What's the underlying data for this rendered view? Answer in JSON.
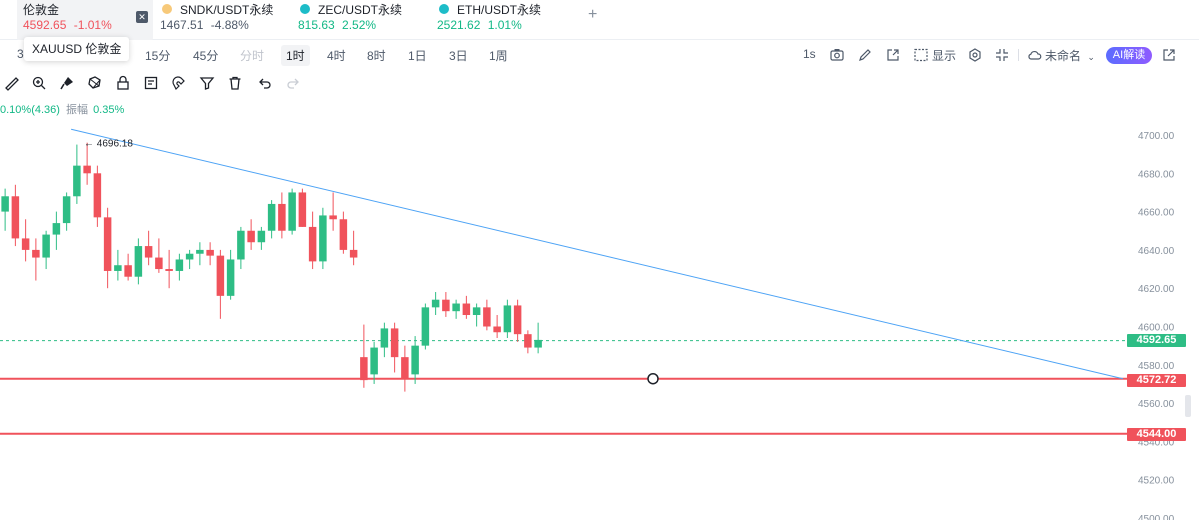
{
  "tickers": [
    {
      "name": "伦敦金",
      "price": "4592.65",
      "change": "-1.01%",
      "active": true
    },
    {
      "name": "SNDK/USDT永续",
      "price": "1467.51",
      "change": "-4.88%"
    },
    {
      "name": "ZEC/USDT永续",
      "price": "815.63",
      "change": "2.52%"
    },
    {
      "name": "ETH/USDT永续",
      "price": "2521.62",
      "change": "1.01%"
    }
  ],
  "tooltip": "XAUUSD 伦敦金",
  "intervals": {
    "first": "3",
    "items": [
      "15分",
      "45分",
      "分时",
      "1时",
      "4时",
      "8时",
      "1日",
      "3日",
      "1周"
    ],
    "active": "1时"
  },
  "toolbar_right": {
    "seconds": "1s",
    "display": "显示",
    "unnamed": "未命名",
    "ai": "AI解读"
  },
  "info_line": {
    "change": "0.10%(4.36)",
    "amplitude_label": "振幅",
    "amplitude": "0.35%"
  },
  "colors": {
    "up": "#2ebd85",
    "down": "#f0525b",
    "trend": "#4da3f5",
    "level": "#f0525b",
    "current": "#2ebd85"
  },
  "chart_data": {
    "type": "candlestick",
    "y_ticks": [
      4700,
      4680,
      4660,
      4640,
      4620,
      4600,
      4580,
      4560,
      4540,
      4520,
      4500
    ],
    "ylim": [
      4498,
      4705
    ],
    "high_marker": "4696.18",
    "current_price": "4592.65",
    "levels": [
      "4572.72",
      "4544.00"
    ],
    "trendline": {
      "from": {
        "candle": 0,
        "price": 4703
      },
      "to": {
        "candle": 59,
        "price": 4572.72
      }
    },
    "circle_marker": {
      "candle": 35,
      "price": 4572.72
    },
    "candles": [
      {
        "o": 4660,
        "h": 4672,
        "l": 4650,
        "c": 4668
      },
      {
        "o": 4668,
        "h": 4674,
        "l": 4642,
        "c": 4646
      },
      {
        "o": 4646,
        "h": 4656,
        "l": 4634,
        "c": 4640
      },
      {
        "o": 4640,
        "h": 4646,
        "l": 4624,
        "c": 4636
      },
      {
        "o": 4636,
        "h": 4650,
        "l": 4630,
        "c": 4648
      },
      {
        "o": 4648,
        "h": 4660,
        "l": 4640,
        "c": 4654
      },
      {
        "o": 4654,
        "h": 4670,
        "l": 4650,
        "c": 4668
      },
      {
        "o": 4668,
        "h": 4695,
        "l": 4664,
        "c": 4684
      },
      {
        "o": 4684,
        "h": 4696,
        "l": 4674,
        "c": 4680
      },
      {
        "o": 4680,
        "h": 4684,
        "l": 4652,
        "c": 4657
      },
      {
        "o": 4657,
        "h": 4662,
        "l": 4620,
        "c": 4629
      },
      {
        "o": 4629,
        "h": 4640,
        "l": 4624,
        "c": 4632
      },
      {
        "o": 4632,
        "h": 4638,
        "l": 4624,
        "c": 4626
      },
      {
        "o": 4626,
        "h": 4646,
        "l": 4622,
        "c": 4642
      },
      {
        "o": 4642,
        "h": 4650,
        "l": 4632,
        "c": 4636
      },
      {
        "o": 4636,
        "h": 4646,
        "l": 4628,
        "c": 4630
      },
      {
        "o": 4630,
        "h": 4640,
        "l": 4620,
        "c": 4629
      },
      {
        "o": 4629,
        "h": 4638,
        "l": 4624,
        "c": 4635
      },
      {
        "o": 4635,
        "h": 4640,
        "l": 4630,
        "c": 4638
      },
      {
        "o": 4638,
        "h": 4644,
        "l": 4632,
        "c": 4640
      },
      {
        "o": 4640,
        "h": 4644,
        "l": 4632,
        "c": 4637
      },
      {
        "o": 4637,
        "h": 4640,
        "l": 4604,
        "c": 4616
      },
      {
        "o": 4616,
        "h": 4640,
        "l": 4614,
        "c": 4635
      },
      {
        "o": 4635,
        "h": 4652,
        "l": 4630,
        "c": 4650
      },
      {
        "o": 4650,
        "h": 4656,
        "l": 4640,
        "c": 4644
      },
      {
        "o": 4644,
        "h": 4652,
        "l": 4640,
        "c": 4650
      },
      {
        "o": 4650,
        "h": 4666,
        "l": 4646,
        "c": 4664
      },
      {
        "o": 4664,
        "h": 4670,
        "l": 4646,
        "c": 4650
      },
      {
        "o": 4650,
        "h": 4672,
        "l": 4648,
        "c": 4670
      },
      {
        "o": 4670,
        "h": 4672,
        "l": 4652,
        "c": 4652
      },
      {
        "o": 4652,
        "h": 4660,
        "l": 4630,
        "c": 4634
      },
      {
        "o": 4634,
        "h": 4662,
        "l": 4630,
        "c": 4658
      },
      {
        "o": 4658,
        "h": 4670,
        "l": 4650,
        "c": 4656
      },
      {
        "o": 4656,
        "h": 4660,
        "l": 4638,
        "c": 4640
      },
      {
        "o": 4640,
        "h": 4650,
        "l": 4632,
        "c": 4636
      },
      {
        "o": 4584,
        "h": 4601,
        "l": 4568,
        "c": 4572
      },
      {
        "o": 4575,
        "h": 4592,
        "l": 4570,
        "c": 4589
      },
      {
        "o": 4589,
        "h": 4602,
        "l": 4584,
        "c": 4599
      },
      {
        "o": 4599,
        "h": 4602,
        "l": 4576,
        "c": 4584
      },
      {
        "o": 4584,
        "h": 4590,
        "l": 4566,
        "c": 4573
      },
      {
        "o": 4575,
        "h": 4595,
        "l": 4570,
        "c": 4590
      },
      {
        "o": 4590,
        "h": 4612,
        "l": 4588,
        "c": 4610
      },
      {
        "o": 4610,
        "h": 4618,
        "l": 4606,
        "c": 4614
      },
      {
        "o": 4614,
        "h": 4618,
        "l": 4605,
        "c": 4608
      },
      {
        "o": 4608,
        "h": 4614,
        "l": 4604,
        "c": 4612
      },
      {
        "o": 4612,
        "h": 4616,
        "l": 4604,
        "c": 4606
      },
      {
        "o": 4606,
        "h": 4612,
        "l": 4600,
        "c": 4610
      },
      {
        "o": 4610,
        "h": 4614,
        "l": 4598,
        "c": 4600
      },
      {
        "o": 4600,
        "h": 4606,
        "l": 4594,
        "c": 4597
      },
      {
        "o": 4597,
        "h": 4614,
        "l": 4594,
        "c": 4611
      },
      {
        "o": 4611,
        "h": 4614,
        "l": 4592,
        "c": 4596
      },
      {
        "o": 4596,
        "h": 4598,
        "l": 4586,
        "c": 4589
      },
      {
        "o": 4589,
        "h": 4602,
        "l": 4586,
        "c": 4593
      }
    ]
  }
}
